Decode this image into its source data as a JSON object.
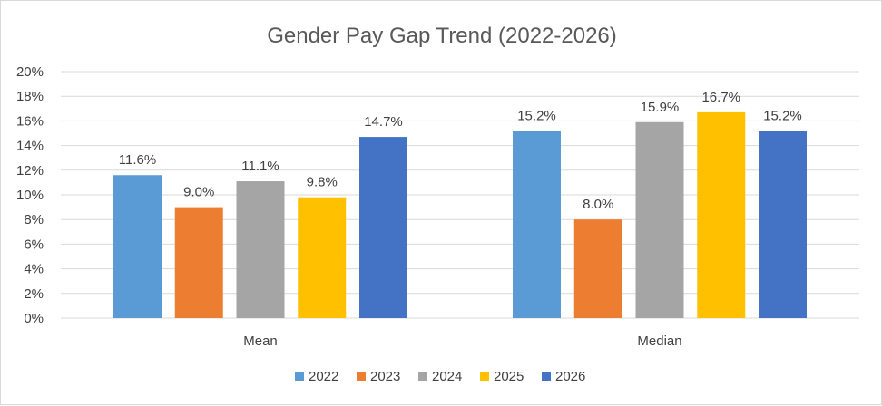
{
  "chart_data": {
    "type": "bar",
    "title": "Gender Pay Gap Trend (2022-2026)",
    "categories": [
      "Mean",
      "Median"
    ],
    "series": [
      {
        "name": "2022",
        "values": [
          11.6,
          15.2
        ],
        "labels": [
          "11.6%",
          "15.2%"
        ],
        "color": "#5b9bd5"
      },
      {
        "name": "2023",
        "values": [
          9.0,
          8.0
        ],
        "labels": [
          "9.0%",
          "8.0%"
        ],
        "color": "#ed7d31"
      },
      {
        "name": "2024",
        "values": [
          11.1,
          15.9
        ],
        "labels": [
          "11.1%",
          "15.9%"
        ],
        "color": "#a5a5a5"
      },
      {
        "name": "2025",
        "values": [
          9.8,
          16.7
        ],
        "labels": [
          "9.8%",
          "16.7%"
        ],
        "color": "#ffc000"
      },
      {
        "name": "2026",
        "values": [
          14.7,
          15.2
        ],
        "labels": [
          "14.7%",
          "15.2%"
        ],
        "color": "#4472c4"
      }
    ],
    "ylim": [
      0,
      20
    ],
    "yticks": [
      "0%",
      "2%",
      "4%",
      "6%",
      "8%",
      "10%",
      "12%",
      "14%",
      "16%",
      "18%",
      "20%"
    ],
    "grid": true,
    "legend_position": "bottom"
  }
}
